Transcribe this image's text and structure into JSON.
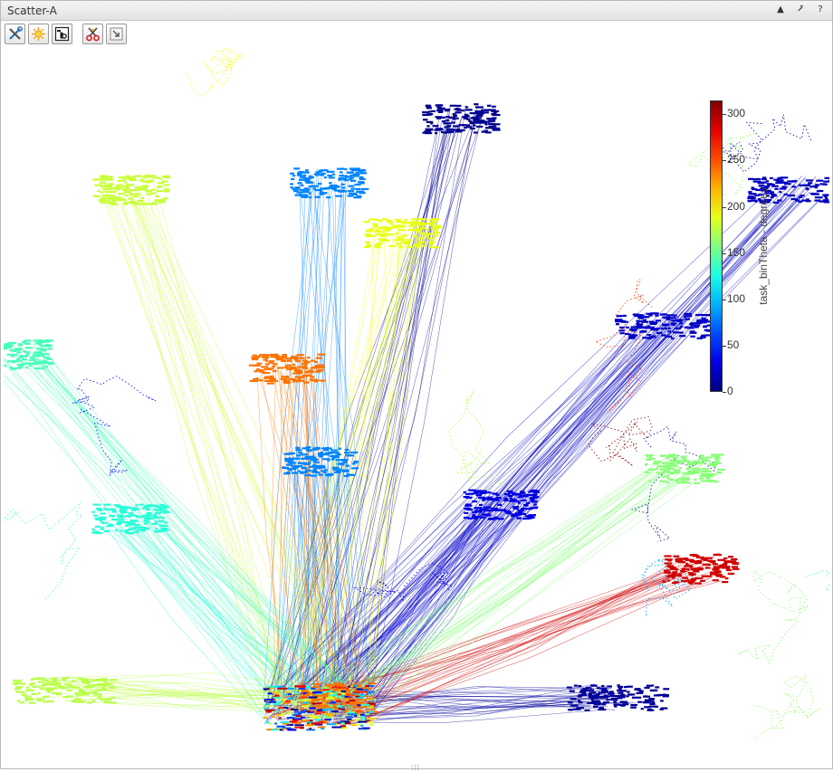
{
  "window": {
    "title": "Scatter-A"
  },
  "window_controls": {
    "collapse_glyph": "▲",
    "undock_glyph": "⭷",
    "help_glyph": "?"
  },
  "toolbar": {
    "items": [
      {
        "icon": "tools-icon"
      },
      {
        "icon": "sun-icon"
      },
      {
        "icon": "text-label-icon"
      },
      {
        "icon": "scissors-icon"
      },
      {
        "icon": "export-arrow-icon"
      }
    ]
  },
  "status": {
    "grip_glyph": "⁞⁞⁞"
  },
  "chart_data": {
    "type": "scatter",
    "title": "",
    "colorbar": {
      "label": "task_binTheta - degrees",
      "ticks": [
        "300",
        "250",
        "200",
        "150",
        "100",
        "50",
        "0"
      ],
      "range": [
        0,
        315
      ],
      "colormap": "jet"
    },
    "clusters": [
      {
        "x": 0.39,
        "y": 0.19,
        "theta": 80
      },
      {
        "x": 0.38,
        "y": 0.58,
        "theta": 80
      },
      {
        "x": 0.15,
        "y": 0.66,
        "theta": 130
      },
      {
        "x": 0.6,
        "y": 0.64,
        "theta": 30
      },
      {
        "x": 0.8,
        "y": 0.39,
        "theta": 22
      },
      {
        "x": 0.96,
        "y": 0.2,
        "theta": 20
      },
      {
        "x": 0.07,
        "y": 0.9,
        "theta": 175
      },
      {
        "x": 0.74,
        "y": 0.91,
        "theta": 8
      },
      {
        "x": 0.4,
        "y": 0.91,
        "theta": 240
      },
      {
        "x": 0.55,
        "y": 0.1,
        "theta": 5
      },
      {
        "x": 0.15,
        "y": 0.2,
        "theta": 180
      },
      {
        "x": 0.48,
        "y": 0.26,
        "theta": 190
      },
      {
        "x": 0.01,
        "y": 0.43,
        "theta": 140
      },
      {
        "x": 0.34,
        "y": 0.45,
        "theta": 240
      },
      {
        "x": 0.84,
        "y": 0.73,
        "theta": 290
      },
      {
        "x": 0.82,
        "y": 0.59,
        "theta": 160
      }
    ]
  }
}
